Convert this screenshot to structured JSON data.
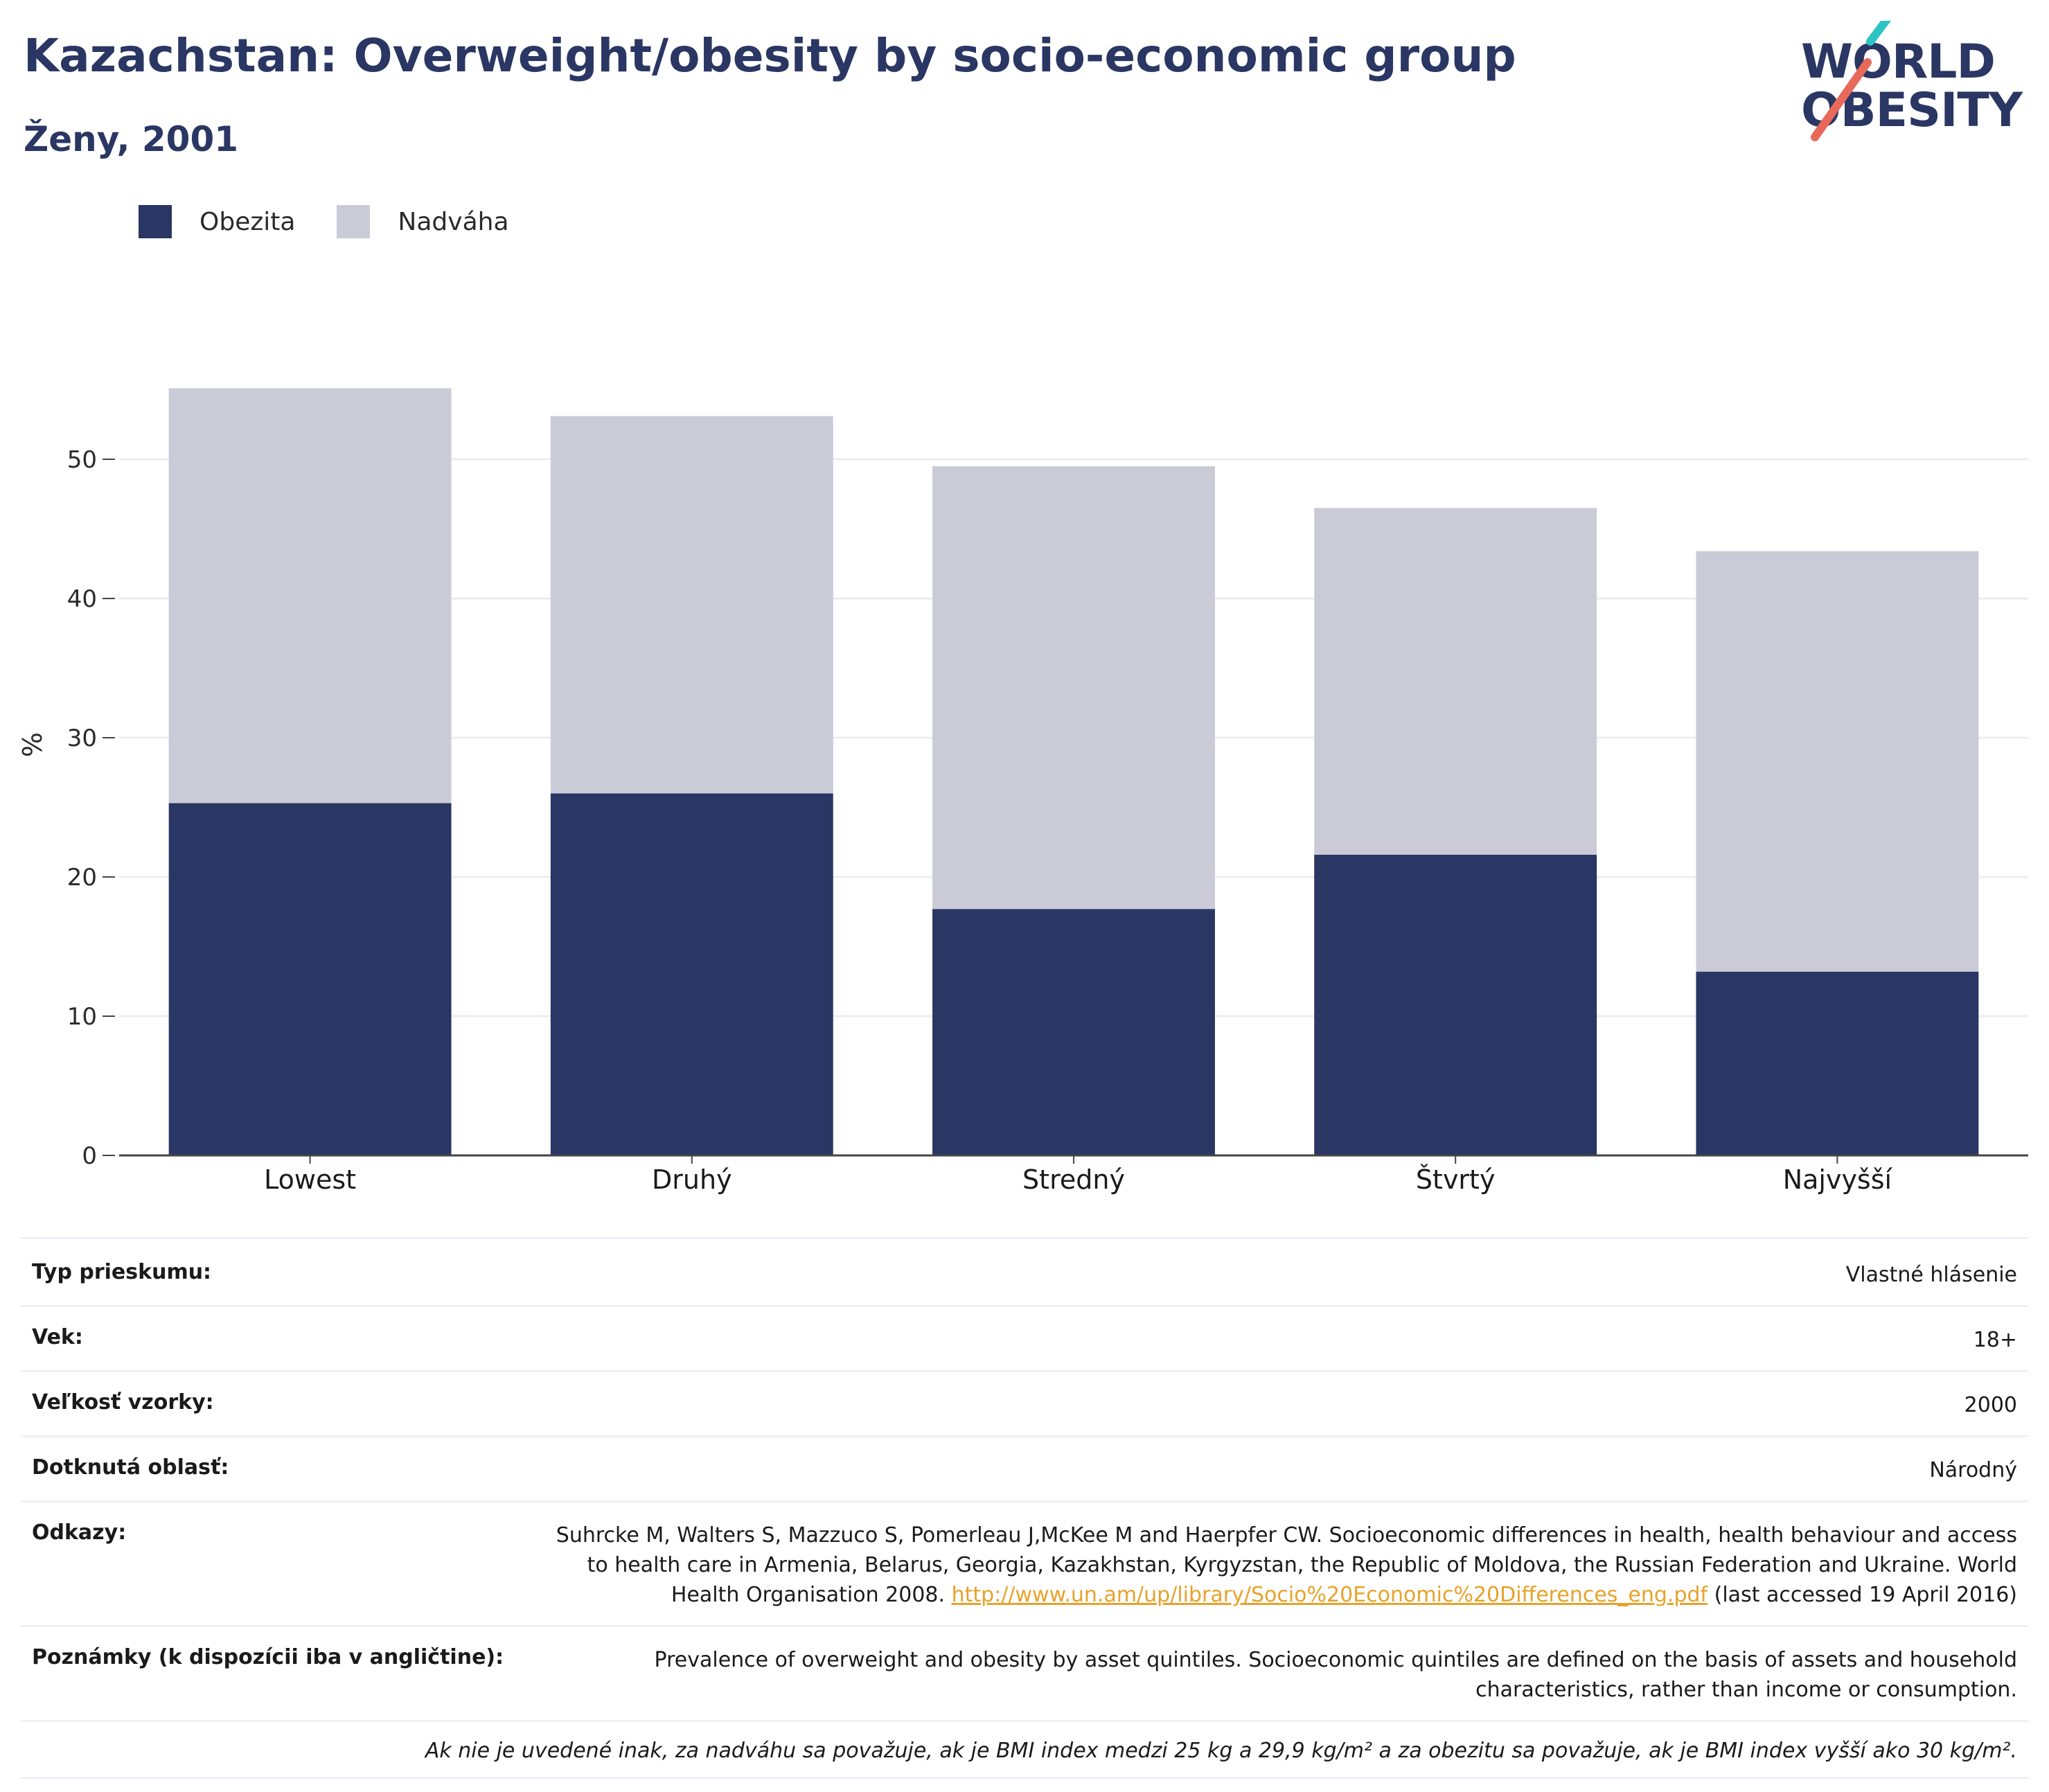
{
  "header": {
    "title": "Kazachstan: Overweight/obesity by socio-economic group",
    "subtitle": "Ženy, 2001"
  },
  "logo": {
    "line1": "WORLD",
    "line2": "OBESITY",
    "accent_teal": "#2ec4c4",
    "accent_red": "#e8685a"
  },
  "legend": [
    {
      "label": "Obezita",
      "color": "#2a3663"
    },
    {
      "label": "Nadváha",
      "color": "#cacbd7"
    }
  ],
  "chart_data": {
    "type": "bar",
    "stacked": true,
    "categories": [
      "Lowest",
      "Druhý",
      "Stredný",
      "Štvrtý",
      "Najvyšší"
    ],
    "series": [
      {
        "name": "Obezita",
        "color": "#2a3663",
        "values": [
          25.3,
          26.0,
          17.7,
          21.6,
          13.2
        ]
      },
      {
        "name": "Nadváha",
        "color": "#cacbd7",
        "values": [
          29.8,
          27.1,
          31.8,
          24.9,
          30.2
        ]
      }
    ],
    "ylabel": "%",
    "ylim": [
      0,
      60
    ],
    "yticks": [
      0,
      10,
      20,
      30,
      40,
      50
    ],
    "grid": true,
    "legend_position": "top-left"
  },
  "info": {
    "rows": [
      {
        "label": "Typ prieskumu:",
        "value": "Vlastné hlásenie"
      },
      {
        "label": "Vek:",
        "value": "18+"
      },
      {
        "label": "Veľkosť vzorky:",
        "value": "2000"
      },
      {
        "label": "Dotknutá oblasť:",
        "value": "Národný"
      }
    ],
    "references": {
      "label": "Odkazy:",
      "text_before": "Suhrcke M, Walters S, Mazzuco S, Pomerleau J,McKee M and Haerpfer CW. Socioeconomic differences in health, health behaviour and access to health care in Armenia, Belarus, Georgia, Kazakhstan, Kyrgyzstan, the Republic of Moldova, the Russian Federation and Ukraine. World Health Organisation 2008. ",
      "link": "http://www.un.am/up/library/Socio%20Economic%20Differences_eng.pdf",
      "text_after": " (last accessed 19 April 2016)"
    },
    "notes": {
      "label": "Poznámky (k dispozícii iba v angličtine):",
      "value": "Prevalence of overweight and obesity by asset quintiles. Socioeconomic quintiles are defined on the basis of assets and household characteristics, rather than income or consumption."
    },
    "footnote": "Ak nie je uvedené inak, za nadváhu sa považuje, ak je BMI index medzi 25 kg a 29,9 kg/m² a za obezitu sa považuje, ak je BMI index vyšší ako 30 kg/m²."
  }
}
